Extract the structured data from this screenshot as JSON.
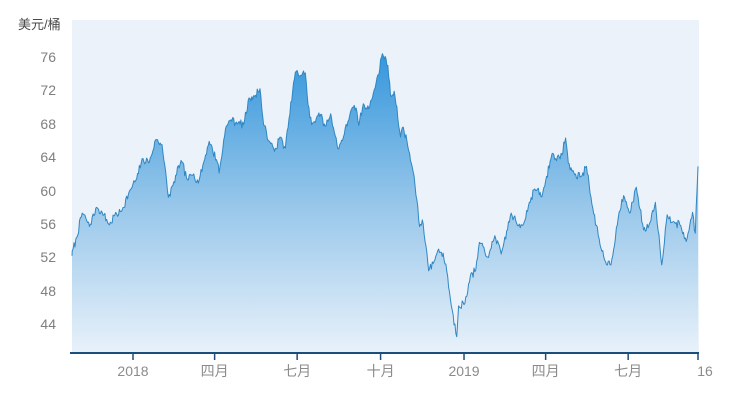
{
  "chart_data": {
    "type": "area",
    "title": "",
    "ylabel": "美元/桶",
    "xlabel": "",
    "legend": [],
    "grid": false,
    "y_ticks": [
      76,
      72,
      68,
      64,
      60,
      56,
      52,
      48,
      44
    ],
    "ylim": [
      40.5,
      80.4
    ],
    "x_range": [
      "2017-10-25",
      "2019-09-16"
    ],
    "x_ticks": [
      {
        "label": "2018",
        "date": "2018-01-01"
      },
      {
        "label": "四月",
        "date": "2018-04-01"
      },
      {
        "label": "七月",
        "date": "2018-07-01"
      },
      {
        "label": "十月",
        "date": "2018-10-01"
      },
      {
        "label": "2019",
        "date": "2019-01-01"
      },
      {
        "label": "四月",
        "date": "2019-04-01"
      },
      {
        "label": "七月",
        "date": "2019-07-01"
      },
      {
        "label": "16",
        "date": "2019-09-16"
      }
    ],
    "series": [
      {
        "name": "crude-oil-price-usd-per-barrel",
        "points": [
          [
            "2017-10-25",
            52.2
          ],
          [
            "2017-10-31",
            54.4
          ],
          [
            "2017-11-06",
            57.3
          ],
          [
            "2017-11-10",
            56.7
          ],
          [
            "2017-11-14",
            55.7
          ],
          [
            "2017-11-22",
            58.0
          ],
          [
            "2017-11-28",
            57.4
          ],
          [
            "2017-12-06",
            55.9
          ],
          [
            "2017-12-12",
            57.1
          ],
          [
            "2017-12-19",
            57.5
          ],
          [
            "2017-12-29",
            60.1
          ],
          [
            "2018-01-05",
            61.4
          ],
          [
            "2018-01-11",
            63.8
          ],
          [
            "2018-01-19",
            63.4
          ],
          [
            "2018-01-26",
            66.1
          ],
          [
            "2018-02-02",
            65.5
          ],
          [
            "2018-02-09",
            59.2
          ],
          [
            "2018-02-14",
            60.6
          ],
          [
            "2018-02-23",
            63.6
          ],
          [
            "2018-03-02",
            61.3
          ],
          [
            "2018-03-09",
            62.0
          ],
          [
            "2018-03-14",
            60.9
          ],
          [
            "2018-03-26",
            65.9
          ],
          [
            "2018-04-04",
            63.4
          ],
          [
            "2018-04-06",
            62.1
          ],
          [
            "2018-04-13",
            67.4
          ],
          [
            "2018-04-19",
            68.5
          ],
          [
            "2018-04-27",
            68.1
          ],
          [
            "2018-05-03",
            67.9
          ],
          [
            "2018-05-09",
            71.1
          ],
          [
            "2018-05-15",
            71.3
          ],
          [
            "2018-05-21",
            72.2
          ],
          [
            "2018-05-25",
            67.9
          ],
          [
            "2018-06-01",
            65.8
          ],
          [
            "2018-06-06",
            64.7
          ],
          [
            "2018-06-12",
            66.4
          ],
          [
            "2018-06-18",
            65.1
          ],
          [
            "2018-06-22",
            68.6
          ],
          [
            "2018-06-29",
            74.2
          ],
          [
            "2018-07-06",
            73.8
          ],
          [
            "2018-07-10",
            74.1
          ],
          [
            "2018-07-13",
            70.3
          ],
          [
            "2018-07-17",
            67.9
          ],
          [
            "2018-07-25",
            69.3
          ],
          [
            "2018-08-01",
            67.7
          ],
          [
            "2018-08-07",
            69.2
          ],
          [
            "2018-08-15",
            65.0
          ],
          [
            "2018-08-21",
            66.4
          ],
          [
            "2018-08-29",
            69.5
          ],
          [
            "2018-09-04",
            69.9
          ],
          [
            "2018-09-07",
            67.8
          ],
          [
            "2018-09-12",
            70.4
          ],
          [
            "2018-09-18",
            69.8
          ],
          [
            "2018-09-25",
            72.3
          ],
          [
            "2018-10-03",
            76.4
          ],
          [
            "2018-10-09",
            75.0
          ],
          [
            "2018-10-12",
            71.3
          ],
          [
            "2018-10-16",
            71.9
          ],
          [
            "2018-10-23",
            66.4
          ],
          [
            "2018-10-26",
            67.6
          ],
          [
            "2018-10-31",
            65.3
          ],
          [
            "2018-11-07",
            61.7
          ],
          [
            "2018-11-13",
            55.7
          ],
          [
            "2018-11-16",
            56.5
          ],
          [
            "2018-11-20",
            53.4
          ],
          [
            "2018-11-23",
            50.4
          ],
          [
            "2018-11-29",
            51.5
          ],
          [
            "2018-12-04",
            53.0
          ],
          [
            "2018-12-07",
            52.6
          ],
          [
            "2018-12-12",
            51.2
          ],
          [
            "2018-12-18",
            46.2
          ],
          [
            "2018-12-24",
            42.5
          ],
          [
            "2018-12-26",
            46.2
          ],
          [
            "2019-01-02",
            46.5
          ],
          [
            "2019-01-08",
            49.8
          ],
          [
            "2019-01-14",
            50.5
          ],
          [
            "2019-01-18",
            53.8
          ],
          [
            "2019-01-28",
            52.0
          ],
          [
            "2019-02-04",
            54.6
          ],
          [
            "2019-02-11",
            52.4
          ],
          [
            "2019-02-22",
            57.3
          ],
          [
            "2019-03-01",
            55.8
          ],
          [
            "2019-03-08",
            56.1
          ],
          [
            "2019-03-14",
            58.6
          ],
          [
            "2019-03-20",
            60.2
          ],
          [
            "2019-03-28",
            59.3
          ],
          [
            "2019-04-08",
            64.4
          ],
          [
            "2019-04-17",
            63.8
          ],
          [
            "2019-04-23",
            66.3
          ],
          [
            "2019-04-26",
            63.3
          ],
          [
            "2019-05-03",
            61.9
          ],
          [
            "2019-05-10",
            61.7
          ],
          [
            "2019-05-16",
            62.9
          ],
          [
            "2019-05-23",
            57.9
          ],
          [
            "2019-05-31",
            53.5
          ],
          [
            "2019-06-05",
            51.7
          ],
          [
            "2019-06-12",
            51.1
          ],
          [
            "2019-06-20",
            56.7
          ],
          [
            "2019-06-26",
            59.4
          ],
          [
            "2019-07-03",
            57.3
          ],
          [
            "2019-07-10",
            60.4
          ],
          [
            "2019-07-18",
            55.3
          ],
          [
            "2019-07-24",
            55.9
          ],
          [
            "2019-07-31",
            58.6
          ],
          [
            "2019-08-07",
            51.1
          ],
          [
            "2019-08-13",
            57.1
          ],
          [
            "2019-08-20",
            56.3
          ],
          [
            "2019-08-28",
            55.8
          ],
          [
            "2019-09-03",
            53.9
          ],
          [
            "2019-09-10",
            57.4
          ],
          [
            "2019-09-13",
            54.9
          ],
          [
            "2019-09-16",
            62.9
          ]
        ]
      }
    ],
    "noise": {
      "seed": 7,
      "amplitude": 0.55
    }
  },
  "colors": {
    "plot_bg": "#ecf2f9",
    "axis": "#1c4e7b",
    "line": "#2f87c3",
    "fill_top": "#3597dc",
    "fill_mid": "#96c6ea",
    "fill_bottom": "#e8f1fa",
    "tick_text": "#8b8b8b",
    "unit_text": "#4a4a4a"
  }
}
